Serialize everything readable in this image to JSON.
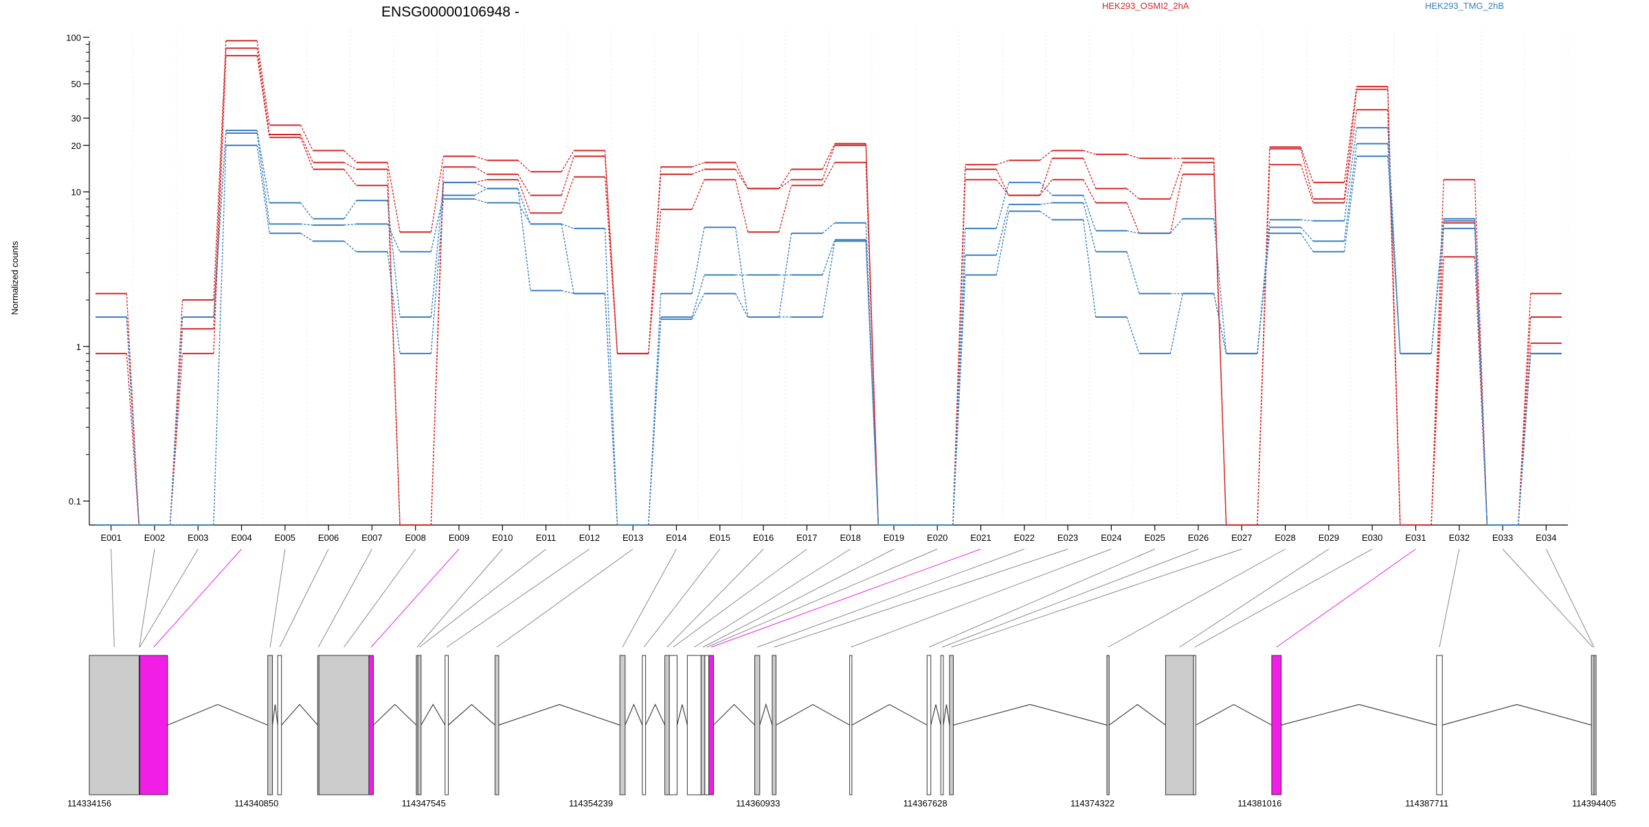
{
  "chart_data": {
    "type": "line",
    "title": "ENSG00000106948 -",
    "ylabel": "Normalized counts",
    "yscale": "log",
    "ylim": [
      0.07,
      110
    ],
    "yticks": [
      0.1,
      1,
      10,
      20,
      30,
      50,
      100
    ],
    "yticklabels": [
      "0.1",
      "1",
      "10",
      "20",
      "30",
      "50",
      "100"
    ],
    "categories": [
      "E001",
      "E002",
      "E003",
      "E004",
      "E005",
      "E006",
      "E007",
      "E008",
      "E009",
      "E010",
      "E011",
      "E012",
      "E013",
      "E014",
      "E015",
      "E016",
      "E017",
      "E018",
      "E019",
      "E020",
      "E021",
      "E022",
      "E023",
      "E024",
      "E025",
      "E026",
      "E027",
      "E028",
      "E029",
      "E030",
      "E031",
      "E032",
      "E033",
      "E034"
    ],
    "legend": [
      {
        "name": "HEK293_OSMI2_2hA",
        "color": "#d62728"
      },
      {
        "name": "HEK293_TMG_2hB",
        "color": "#3a7fc0"
      }
    ],
    "colors": {
      "group_a": "#d62728",
      "group_b": "#3a7fc0",
      "highlight": "#f01ee6",
      "exon_fill": "#cccccc"
    },
    "series": [
      {
        "group": "a",
        "values": [
          0.9,
          0.07,
          0.9,
          76,
          22.5,
          14,
          11,
          0.07,
          11.5,
          12,
          7.3,
          12.5,
          0.9,
          7.7,
          12,
          5.5,
          11,
          15.5,
          0.07,
          0.07,
          12,
          9.5,
          12,
          8.5,
          5.4,
          13,
          0.07,
          15,
          8.5,
          34,
          0.07,
          3.8,
          0.07,
          1.05
        ]
      },
      {
        "group": "a",
        "values": [
          1.55,
          0.07,
          1.3,
          85,
          23.5,
          15.5,
          14,
          0.07,
          14.5,
          13,
          9.5,
          17,
          0.9,
          13,
          14,
          10.5,
          12,
          20,
          0.07,
          0.07,
          14,
          9.5,
          16.5,
          10.5,
          9,
          15.5,
          0.07,
          19,
          9,
          46,
          0.07,
          6.3,
          0.07,
          1.55
        ]
      },
      {
        "group": "a",
        "values": [
          2.2,
          0.07,
          2.0,
          95,
          27,
          18.5,
          15.5,
          5.5,
          17,
          16,
          13.5,
          18.5,
          0.9,
          14.5,
          15.5,
          10.5,
          14,
          20.5,
          0.07,
          0.07,
          15,
          16,
          18.5,
          17.5,
          16.5,
          16.5,
          0.07,
          19.5,
          11.5,
          48,
          0.07,
          12,
          0.07,
          2.2
        ]
      },
      {
        "group": "b",
        "values": [
          0.07,
          0.07,
          0.07,
          20,
          5.4,
          4.8,
          4.1,
          0.9,
          9,
          8.5,
          6.2,
          2.2,
          0.07,
          1.5,
          2.2,
          1.55,
          1.55,
          4.8,
          0.07,
          0.07,
          2.9,
          7.5,
          6.6,
          1.55,
          0.9,
          2.2,
          0.9,
          5.4,
          4.1,
          17,
          0.9,
          5.8,
          0.07,
          0.9
        ]
      },
      {
        "group": "b",
        "values": [
          1.55,
          0.07,
          1.55,
          24,
          6.2,
          6.1,
          6.2,
          4.1,
          9.5,
          10.5,
          2.3,
          2.2,
          0.07,
          1.55,
          2.9,
          2.9,
          2.9,
          4.9,
          0.07,
          0.07,
          3.9,
          8.3,
          8.5,
          4.1,
          2.2,
          2.2,
          0.9,
          5.9,
          4.8,
          20.5,
          0.9,
          6.5,
          0.07,
          0.9
        ]
      },
      {
        "group": "b",
        "values": [
          1.55,
          0.07,
          1.55,
          25,
          8.5,
          6.7,
          8.8,
          1.55,
          11.5,
          10.5,
          6.2,
          5.8,
          0.07,
          2.2,
          5.9,
          1.55,
          5.4,
          6.3,
          0.07,
          0.07,
          5.8,
          11.5,
          9.5,
          5.6,
          5.4,
          6.7,
          0.9,
          6.6,
          6.5,
          26,
          0.9,
          6.7,
          0.07,
          0.9
        ]
      }
    ],
    "exon_track": {
      "start": 114334156,
      "end": 114394405,
      "tick_labels": [
        "114334156",
        "114340850",
        "114347545",
        "114354239",
        "114360933",
        "114367628",
        "114374322",
        "114381016",
        "114387711",
        "114394405"
      ],
      "exons": [
        {
          "id": "E001",
          "start": 114334156,
          "end": 114336150,
          "fill": "gray"
        },
        {
          "id": "E002",
          "start": 114336150,
          "end": 114336165,
          "fill": "white"
        },
        {
          "id": "E003",
          "start": 114336165,
          "end": 114336180,
          "fill": "white"
        },
        {
          "id": "E004",
          "start": 114336180,
          "end": 114337290,
          "fill": "highlight"
        },
        {
          "id": "E005",
          "start": 114341300,
          "end": 114341490,
          "fill": "gray"
        },
        {
          "id": "E006",
          "start": 114341700,
          "end": 114341850,
          "fill": "white"
        },
        {
          "id": "E007",
          "start": 114343300,
          "end": 114343350,
          "fill": "gray"
        },
        {
          "id": "E008",
          "start": 114343350,
          "end": 114345350,
          "fill": "gray"
        },
        {
          "id": "E009",
          "start": 114345350,
          "end": 114345530,
          "fill": "highlight"
        },
        {
          "id": "E010",
          "start": 114347250,
          "end": 114347310,
          "fill": "gray"
        },
        {
          "id": "E011",
          "start": 114347310,
          "end": 114347440,
          "fill": "gray"
        },
        {
          "id": "E012",
          "start": 114348400,
          "end": 114348530,
          "fill": "white"
        },
        {
          "id": "E013",
          "start": 114350400,
          "end": 114350550,
          "fill": "gray"
        },
        {
          "id": "E014",
          "start": 114355400,
          "end": 114355610,
          "fill": "gray"
        },
        {
          "id": "E015",
          "start": 114356300,
          "end": 114356430,
          "fill": "white"
        },
        {
          "id": "E016",
          "start": 114357200,
          "end": 114357380,
          "fill": "gray"
        },
        {
          "id": "E017",
          "start": 114357380,
          "end": 114357690,
          "fill": "white"
        },
        {
          "id": "E018",
          "start": 114358100,
          "end": 114358650,
          "fill": "white"
        },
        {
          "id": "E019",
          "start": 114358650,
          "end": 114358800,
          "fill": "gray"
        },
        {
          "id": "E020",
          "start": 114358800,
          "end": 114358960,
          "fill": "white"
        },
        {
          "id": "E021",
          "start": 114358960,
          "end": 114359150,
          "fill": "highlight"
        },
        {
          "id": "E022",
          "start": 114360800,
          "end": 114361000,
          "fill": "gray"
        },
        {
          "id": "E023",
          "start": 114361500,
          "end": 114361650,
          "fill": "gray"
        },
        {
          "id": "E024",
          "start": 114364600,
          "end": 114364690,
          "fill": "white"
        },
        {
          "id": "E025",
          "start": 114367700,
          "end": 114367850,
          "fill": "white"
        },
        {
          "id": "E026",
          "start": 114368250,
          "end": 114368350,
          "fill": "white"
        },
        {
          "id": "E027",
          "start": 114368600,
          "end": 114368750,
          "fill": "gray"
        },
        {
          "id": "E028",
          "start": 114374900,
          "end": 114374990,
          "fill": "gray"
        },
        {
          "id": "E029",
          "start": 114377250,
          "end": 114378370,
          "fill": "gray"
        },
        {
          "id": "E030",
          "start": 114378370,
          "end": 114378460,
          "fill": "white"
        },
        {
          "id": "E031",
          "start": 114381500,
          "end": 114381880,
          "fill": "highlight"
        },
        {
          "id": "E032",
          "start": 114388100,
          "end": 114388330,
          "fill": "white"
        },
        {
          "id": "E033",
          "start": 114394300,
          "end": 114394405,
          "fill": "gray"
        },
        {
          "id": "E034",
          "start": 114394405,
          "end": 114394405,
          "fill": "gray"
        }
      ]
    }
  }
}
